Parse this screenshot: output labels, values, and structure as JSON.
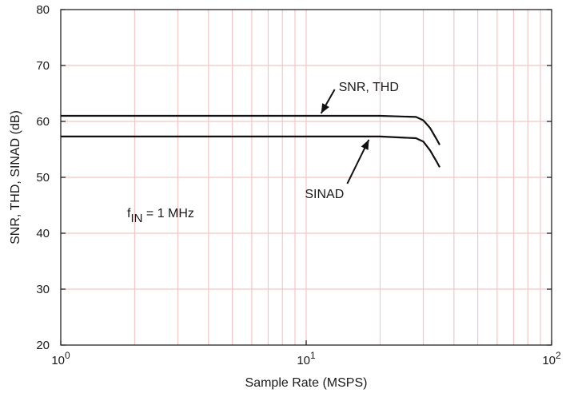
{
  "chart_data": {
    "type": "line",
    "xlabel": "Sample Rate (MSPS)",
    "ylabel": "SNR, THD, SINAD (dB)",
    "x_scale": "log",
    "xlim": [
      1,
      100
    ],
    "ylim": [
      20,
      80
    ],
    "grid": true,
    "x_ticks": [
      {
        "base": "10",
        "exp": "0"
      },
      {
        "base": "10",
        "exp": "1"
      },
      {
        "base": "10",
        "exp": "2"
      }
    ],
    "y_ticks": [
      "20",
      "30",
      "40",
      "50",
      "60",
      "70",
      "80"
    ],
    "series": [
      {
        "name": "SNR, THD",
        "x": [
          1,
          5,
          10,
          20,
          28,
          30,
          32,
          34,
          35
        ],
        "y": [
          61,
          61,
          61,
          61,
          60.8,
          60.2,
          58.8,
          56.8,
          55.8
        ]
      },
      {
        "name": "SINAD",
        "x": [
          1,
          5,
          10,
          20,
          28,
          30,
          32,
          34,
          35
        ],
        "y": [
          57.3,
          57.3,
          57.3,
          57.3,
          57.0,
          56.4,
          54.8,
          52.8,
          51.8
        ]
      }
    ],
    "annotations": [
      {
        "text": "SNR, THD",
        "at_x": 11.5,
        "at_y": 61
      },
      {
        "text": "SINAD",
        "at_x": 18,
        "at_y": 57.3
      },
      {
        "text_prefix": "f",
        "text_sub": "IN",
        "text_suffix": " = 1 MHz"
      }
    ],
    "colors": {
      "grid": "#f4c6c6",
      "line": "#111111",
      "axis": "#111111"
    }
  }
}
